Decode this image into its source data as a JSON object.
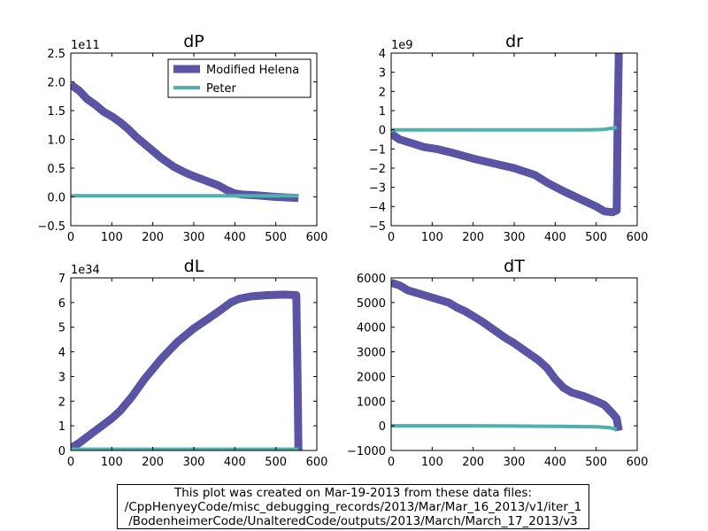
{
  "legend": [
    "Modified Helena",
    "Peter"
  ],
  "footer": {
    "lines": [
      "This plot was created on Mar-19-2013 from these data files:",
      "/CppHenyeyCode/misc_debugging_records/2013/Mar/Mar_16_2013/v1/iter_1",
      "/BodenheimerCode/UnalteredCode/outputs/2013/March/March_17_2013/v3"
    ]
  },
  "colors": {
    "modified_helena": "#5b54a4",
    "peter": "#4fb0ae"
  },
  "chart_data": [
    {
      "type": "line",
      "title": "dP",
      "offset_label": "1e11",
      "xlim": [
        0,
        600
      ],
      "ylim": [
        -0.5,
        2.5
      ],
      "xticks": [
        "0",
        "100",
        "200",
        "300",
        "400",
        "500",
        "600"
      ],
      "yticks": [
        "−0.5",
        "0.0",
        "0.5",
        "1.0",
        "1.5",
        "2.0",
        "2.5"
      ],
      "legend_loc": "upper right",
      "series": [
        {
          "name": "Modified Helena",
          "x": [
            0,
            20,
            40,
            60,
            80,
            100,
            120,
            140,
            160,
            180,
            200,
            220,
            250,
            280,
            300,
            330,
            360,
            380,
            400,
            420,
            450,
            500,
            555
          ],
          "y": [
            1.95,
            1.85,
            1.7,
            1.6,
            1.48,
            1.4,
            1.3,
            1.18,
            1.04,
            0.92,
            0.8,
            0.68,
            0.53,
            0.42,
            0.36,
            0.28,
            0.2,
            0.12,
            0.06,
            0.04,
            0.03,
            0.0,
            -0.02
          ]
        },
        {
          "name": "Peter",
          "x": [
            0,
            100,
            200,
            300,
            400,
            500,
            555
          ],
          "y": [
            0.02,
            0.02,
            0.02,
            0.02,
            0.02,
            0.02,
            0.02
          ]
        }
      ]
    },
    {
      "type": "line",
      "title": "dr",
      "offset_label": "1e9",
      "xlim": [
        0,
        600
      ],
      "ylim": [
        -5,
        4
      ],
      "xticks": [
        "0",
        "100",
        "200",
        "300",
        "400",
        "500",
        "600"
      ],
      "yticks": [
        "−5",
        "−4",
        "−3",
        "−2",
        "−1",
        "0",
        "1",
        "2",
        "3",
        "4"
      ],
      "series": [
        {
          "name": "Modified Helena",
          "x": [
            0,
            20,
            50,
            80,
            110,
            150,
            200,
            250,
            300,
            350,
            380,
            420,
            460,
            500,
            520,
            540,
            550,
            552,
            555
          ],
          "y": [
            -0.2,
            -0.5,
            -0.7,
            -0.9,
            -1.0,
            -1.2,
            -1.5,
            -1.75,
            -2.0,
            -2.35,
            -2.75,
            -3.2,
            -3.6,
            -4.0,
            -4.25,
            -4.3,
            -4.2,
            0.0,
            4.0
          ]
        },
        {
          "name": "Peter",
          "x": [
            0,
            100,
            200,
            300,
            400,
            480,
            520,
            545,
            550
          ],
          "y": [
            0.0,
            0.0,
            0.0,
            0.0,
            0.0,
            0.0,
            0.02,
            0.1,
            0.15
          ]
        }
      ]
    },
    {
      "type": "line",
      "title": "dL",
      "offset_label": "1e34",
      "xlim": [
        0,
        600
      ],
      "ylim": [
        0,
        7
      ],
      "xticks": [
        "0",
        "100",
        "200",
        "300",
        "400",
        "500",
        "600"
      ],
      "yticks": [
        "0",
        "1",
        "2",
        "3",
        "4",
        "5",
        "6",
        "7"
      ],
      "series": [
        {
          "name": "Modified Helena",
          "x": [
            0,
            20,
            40,
            60,
            80,
            100,
            120,
            150,
            180,
            220,
            260,
            300,
            340,
            370,
            390,
            410,
            440,
            480,
            520,
            550,
            553,
            555
          ],
          "y": [
            0.1,
            0.3,
            0.55,
            0.8,
            1.05,
            1.3,
            1.6,
            2.2,
            2.9,
            3.7,
            4.4,
            4.95,
            5.4,
            5.75,
            6.0,
            6.15,
            6.25,
            6.3,
            6.32,
            6.3,
            3.0,
            0.0
          ]
        },
        {
          "name": "Peter",
          "x": [
            0,
            100,
            200,
            300,
            400,
            500,
            555
          ],
          "y": [
            0.05,
            0.05,
            0.05,
            0.05,
            0.05,
            0.05,
            0.05
          ]
        }
      ]
    },
    {
      "type": "line",
      "title": "dT",
      "xlim": [
        0,
        600
      ],
      "ylim": [
        -1000,
        6000
      ],
      "xticks": [
        "0",
        "100",
        "200",
        "300",
        "400",
        "500",
        "600"
      ],
      "yticks": [
        "−1000",
        "0",
        "1000",
        "2000",
        "3000",
        "4000",
        "5000",
        "6000"
      ],
      "series": [
        {
          "name": "Modified Helena",
          "x": [
            0,
            20,
            40,
            60,
            80,
            100,
            120,
            140,
            160,
            180,
            200,
            220,
            250,
            280,
            300,
            330,
            360,
            380,
            400,
            420,
            440,
            470,
            500,
            520,
            540,
            550,
            553,
            555
          ],
          "y": [
            5800,
            5700,
            5500,
            5400,
            5300,
            5200,
            5100,
            5000,
            4800,
            4650,
            4450,
            4250,
            3900,
            3550,
            3350,
            3000,
            2650,
            2350,
            1900,
            1550,
            1350,
            1200,
            1000,
            850,
            500,
            300,
            0,
            -200
          ]
        },
        {
          "name": "Peter",
          "x": [
            0,
            100,
            200,
            300,
            400,
            450,
            500,
            530,
            550
          ],
          "y": [
            0,
            0,
            0,
            -10,
            -20,
            -30,
            -40,
            -70,
            -140
          ]
        }
      ]
    }
  ]
}
